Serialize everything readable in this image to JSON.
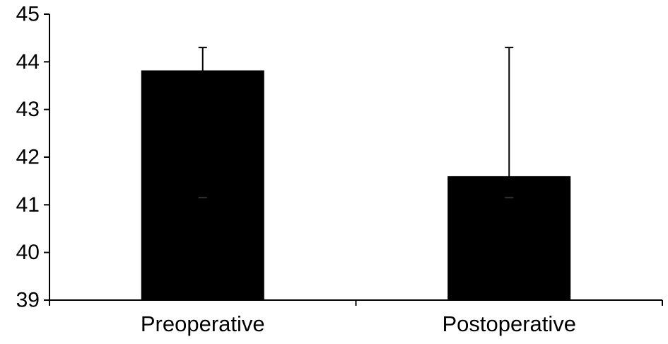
{
  "chart_data": {
    "type": "bar",
    "title": "",
    "xlabel": "",
    "ylabel": "",
    "categories": [
      "Preoperative",
      "Postoperative"
    ],
    "values": [
      43.82,
      41.6
    ],
    "error_upper": [
      44.3,
      44.3
    ],
    "error_lower": [
      41.15,
      41.15
    ],
    "ylim": [
      39,
      45
    ],
    "yticks": [
      "39",
      "40",
      "41",
      "42",
      "43",
      "44",
      "45"
    ],
    "grid": false,
    "legend": "none",
    "bar_color": "#000000",
    "axis_color": "#000000"
  }
}
